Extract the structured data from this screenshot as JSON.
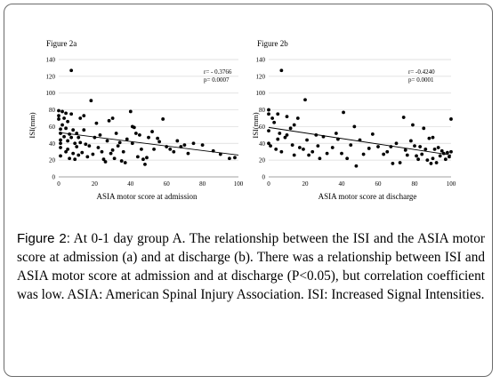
{
  "chart_data": [
    {
      "type": "scatter",
      "title": "Figure 2a",
      "xlabel": "ASIA motor score at admission",
      "ylabel": "ISI(mm)",
      "xlim": [
        0,
        100
      ],
      "ylim": [
        0,
        140
      ],
      "xticks": [
        "0",
        "20",
        "40",
        "60",
        "80",
        "100"
      ],
      "yticks": [
        "0",
        "20",
        "40",
        "60",
        "80",
        "100",
        "120",
        "140"
      ],
      "stat_r": "r= - 0.3766",
      "stat_p": "p= 0.0007",
      "trendline": {
        "x": [
          0,
          100
        ],
        "y": [
          53,
          26
        ]
      },
      "points": [
        [
          0,
          79
        ],
        [
          0,
          73
        ],
        [
          0,
          69
        ],
        [
          1,
          57
        ],
        [
          1,
          52
        ],
        [
          1,
          44
        ],
        [
          1,
          40
        ],
        [
          1,
          35
        ],
        [
          1,
          25
        ],
        [
          2,
          78
        ],
        [
          2,
          62
        ],
        [
          3,
          70
        ],
        [
          3,
          48
        ],
        [
          4,
          76
        ],
        [
          4,
          58
        ],
        [
          4,
          30
        ],
        [
          5,
          66
        ],
        [
          5,
          43
        ],
        [
          5,
          33
        ],
        [
          6,
          51
        ],
        [
          6,
          22
        ],
        [
          7,
          127
        ],
        [
          7,
          75
        ],
        [
          7,
          47
        ],
        [
          8,
          56
        ],
        [
          8,
          28
        ],
        [
          9,
          40
        ],
        [
          9,
          21
        ],
        [
          10,
          52
        ],
        [
          10,
          36
        ],
        [
          11,
          47
        ],
        [
          11,
          26
        ],
        [
          12,
          70
        ],
        [
          12,
          41
        ],
        [
          13,
          29
        ],
        [
          14,
          73
        ],
        [
          14,
          56
        ],
        [
          15,
          39
        ],
        [
          16,
          24
        ],
        [
          17,
          37
        ],
        [
          18,
          91
        ],
        [
          19,
          27
        ],
        [
          20,
          47
        ],
        [
          21,
          64
        ],
        [
          22,
          35
        ],
        [
          23,
          50
        ],
        [
          24,
          30
        ],
        [
          25,
          21
        ],
        [
          26,
          18
        ],
        [
          27,
          43
        ],
        [
          28,
          67
        ],
        [
          29,
          28
        ],
        [
          30,
          70
        ],
        [
          30,
          32
        ],
        [
          31,
          22
        ],
        [
          32,
          52
        ],
        [
          33,
          37
        ],
        [
          34,
          41
        ],
        [
          35,
          19
        ],
        [
          36,
          30
        ],
        [
          37,
          17
        ],
        [
          38,
          45
        ],
        [
          40,
          78
        ],
        [
          41,
          60
        ],
        [
          41,
          40
        ],
        [
          42,
          59
        ],
        [
          43,
          52
        ],
        [
          44,
          24
        ],
        [
          45,
          50
        ],
        [
          46,
          33
        ],
        [
          47,
          21
        ],
        [
          48,
          15
        ],
        [
          49,
          23
        ],
        [
          50,
          47
        ],
        [
          52,
          54
        ],
        [
          53,
          33
        ],
        [
          55,
          46
        ],
        [
          56,
          42
        ],
        [
          58,
          69
        ],
        [
          60,
          36
        ],
        [
          62,
          33
        ],
        [
          64,
          30
        ],
        [
          66,
          43
        ],
        [
          68,
          36
        ],
        [
          70,
          38
        ],
        [
          72,
          28
        ],
        [
          75,
          40
        ],
        [
          80,
          38
        ],
        [
          86,
          31
        ],
        [
          90,
          27
        ],
        [
          95,
          22
        ],
        [
          98,
          23
        ]
      ]
    },
    {
      "type": "scatter",
      "title": "Figure 2b",
      "xlabel": "ASIA motor score at discharge",
      "ylabel": "ISI(mm)",
      "xlim": [
        0,
        100
      ],
      "ylim": [
        0,
        140
      ],
      "xticks": [
        "0",
        "20",
        "40",
        "60",
        "80",
        "100"
      ],
      "yticks": [
        "0",
        "20",
        "40",
        "60",
        "80",
        "100",
        "120",
        "140"
      ],
      "stat_r": "r= -0.4240",
      "stat_p": "p= 0.0001",
      "trendline": {
        "x": [
          0,
          100
        ],
        "y": [
          59,
          26
        ]
      },
      "points": [
        [
          0,
          80
        ],
        [
          0,
          75
        ],
        [
          0,
          55
        ],
        [
          0,
          40
        ],
        [
          1,
          37
        ],
        [
          2,
          70
        ],
        [
          3,
          65
        ],
        [
          4,
          33
        ],
        [
          5,
          75
        ],
        [
          5,
          45
        ],
        [
          6,
          52
        ],
        [
          7,
          127
        ],
        [
          7,
          30
        ],
        [
          9,
          47
        ],
        [
          10,
          72
        ],
        [
          10,
          50
        ],
        [
          12,
          58
        ],
        [
          13,
          38
        ],
        [
          14,
          62
        ],
        [
          14,
          26
        ],
        [
          16,
          70
        ],
        [
          17,
          35
        ],
        [
          19,
          33
        ],
        [
          20,
          92
        ],
        [
          21,
          44
        ],
        [
          22,
          26
        ],
        [
          24,
          30
        ],
        [
          26,
          50
        ],
        [
          27,
          37
        ],
        [
          28,
          22
        ],
        [
          30,
          48
        ],
        [
          32,
          28
        ],
        [
          35,
          35
        ],
        [
          37,
          52
        ],
        [
          38,
          45
        ],
        [
          40,
          28
        ],
        [
          41,
          77
        ],
        [
          43,
          22
        ],
        [
          45,
          38
        ],
        [
          47,
          60
        ],
        [
          48,
          13
        ],
        [
          50,
          44
        ],
        [
          52,
          27
        ],
        [
          55,
          34
        ],
        [
          57,
          51
        ],
        [
          60,
          36
        ],
        [
          63,
          27
        ],
        [
          65,
          30
        ],
        [
          67,
          36
        ],
        [
          68,
          16
        ],
        [
          70,
          40
        ],
        [
          72,
          17
        ],
        [
          74,
          71
        ],
        [
          75,
          32
        ],
        [
          76,
          26
        ],
        [
          78,
          43
        ],
        [
          79,
          62
        ],
        [
          80,
          37
        ],
        [
          81,
          25
        ],
        [
          82,
          21
        ],
        [
          83,
          36
        ],
        [
          84,
          27
        ],
        [
          85,
          58
        ],
        [
          86,
          33
        ],
        [
          87,
          20
        ],
        [
          88,
          46
        ],
        [
          89,
          16
        ],
        [
          90,
          47
        ],
        [
          90,
          22
        ],
        [
          91,
          33
        ],
        [
          92,
          17
        ],
        [
          93,
          35
        ],
        [
          94,
          25
        ],
        [
          95,
          31
        ],
        [
          96,
          28
        ],
        [
          97,
          21
        ],
        [
          98,
          29
        ],
        [
          99,
          24
        ],
        [
          100,
          69
        ],
        [
          100,
          30
        ]
      ]
    }
  ],
  "caption": {
    "lead": "Figure 2:",
    "text": " At 0-1 day group A. The relationship between the ISI and the ASIA motor score at admission (a) and at discharge (b). There was a relationship between ISI and ASIA motor score at admission and at discharge (P<0.05), but correlation coefficient was low. ASIA: American Spinal Injury Association. ISI: Increased Signal Intensities."
  }
}
